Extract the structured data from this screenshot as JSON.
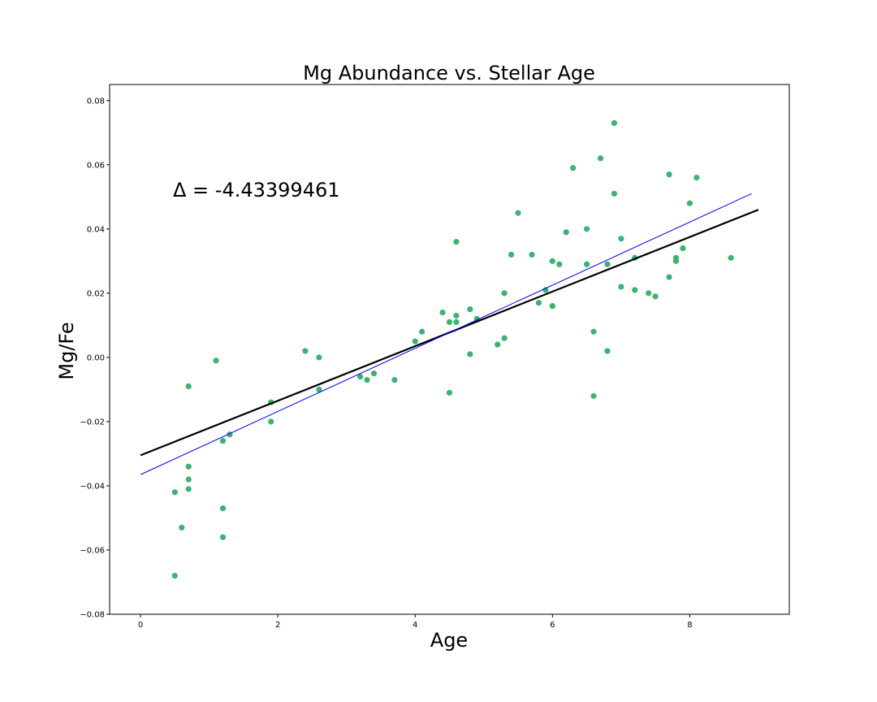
{
  "chart_data": {
    "type": "scatter",
    "title": "Mg Abundance vs. Stellar Age",
    "xlabel": "Age",
    "ylabel": "Mg/Fe",
    "xlim": [
      -0.45,
      9.45
    ],
    "ylim": [
      -0.08,
      0.085
    ],
    "xticks": [
      0,
      2,
      4,
      6,
      8
    ],
    "yticks": [
      -0.08,
      -0.06,
      -0.04,
      -0.02,
      0.0,
      0.02,
      0.04,
      0.06,
      0.08
    ],
    "ytick_labels": [
      "−0.08",
      "−0.06",
      "−0.04",
      "−0.02",
      "0.00",
      "0.02",
      "0.04",
      "0.06",
      "0.08"
    ],
    "grid": false,
    "annotation": "Δ = -4.43399461",
    "point_color": "#3cb371",
    "points": [
      [
        0.5,
        -0.068
      ],
      [
        0.5,
        -0.042
      ],
      [
        0.6,
        -0.053
      ],
      [
        0.7,
        -0.041
      ],
      [
        0.7,
        -0.038
      ],
      [
        0.7,
        -0.034
      ],
      [
        0.7,
        -0.009
      ],
      [
        1.1,
        -0.001
      ],
      [
        1.2,
        -0.026
      ],
      [
        1.2,
        -0.047
      ],
      [
        1.2,
        -0.056
      ],
      [
        1.3,
        -0.024
      ],
      [
        1.9,
        -0.014
      ],
      [
        1.9,
        -0.02
      ],
      [
        2.4,
        0.002
      ],
      [
        2.6,
        0.0
      ],
      [
        2.6,
        -0.01
      ],
      [
        3.2,
        -0.006
      ],
      [
        3.3,
        -0.007
      ],
      [
        3.4,
        -0.005
      ],
      [
        3.7,
        -0.007
      ],
      [
        4.0,
        0.005
      ],
      [
        4.1,
        0.008
      ],
      [
        4.4,
        0.014
      ],
      [
        4.5,
        0.011
      ],
      [
        4.5,
        -0.011
      ],
      [
        4.6,
        0.013
      ],
      [
        4.6,
        0.011
      ],
      [
        4.6,
        0.036
      ],
      [
        4.8,
        0.015
      ],
      [
        4.8,
        0.001
      ],
      [
        4.9,
        0.012
      ],
      [
        5.2,
        0.004
      ],
      [
        5.3,
        0.006
      ],
      [
        5.3,
        0.02
      ],
      [
        5.4,
        0.032
      ],
      [
        5.5,
        0.045
      ],
      [
        5.7,
        0.032
      ],
      [
        5.8,
        0.017
      ],
      [
        5.9,
        0.021
      ],
      [
        6.0,
        0.03
      ],
      [
        6.0,
        0.016
      ],
      [
        6.1,
        0.029
      ],
      [
        6.2,
        0.039
      ],
      [
        6.3,
        0.059
      ],
      [
        6.5,
        0.04
      ],
      [
        6.5,
        0.029
      ],
      [
        6.6,
        0.008
      ],
      [
        6.6,
        -0.012
      ],
      [
        6.7,
        0.062
      ],
      [
        6.8,
        0.029
      ],
      [
        6.8,
        0.002
      ],
      [
        6.9,
        0.073
      ],
      [
        6.9,
        0.051
      ],
      [
        7.0,
        0.037
      ],
      [
        7.0,
        0.022
      ],
      [
        7.2,
        0.031
      ],
      [
        7.2,
        0.021
      ],
      [
        7.4,
        0.02
      ],
      [
        7.5,
        0.019
      ],
      [
        7.7,
        0.057
      ],
      [
        7.7,
        0.025
      ],
      [
        7.8,
        0.031
      ],
      [
        7.8,
        0.03
      ],
      [
        7.9,
        0.034
      ],
      [
        8.0,
        0.048
      ],
      [
        8.1,
        0.056
      ],
      [
        8.6,
        0.031
      ]
    ],
    "lines": [
      {
        "color": "#000000",
        "width": 2.2,
        "x": [
          0,
          9
        ],
        "y": [
          -0.0305,
          0.046
        ]
      },
      {
        "color": "#0000ff",
        "width": 1.0,
        "x": [
          0,
          8.9
        ],
        "y": [
          -0.0365,
          0.051
        ]
      }
    ]
  }
}
